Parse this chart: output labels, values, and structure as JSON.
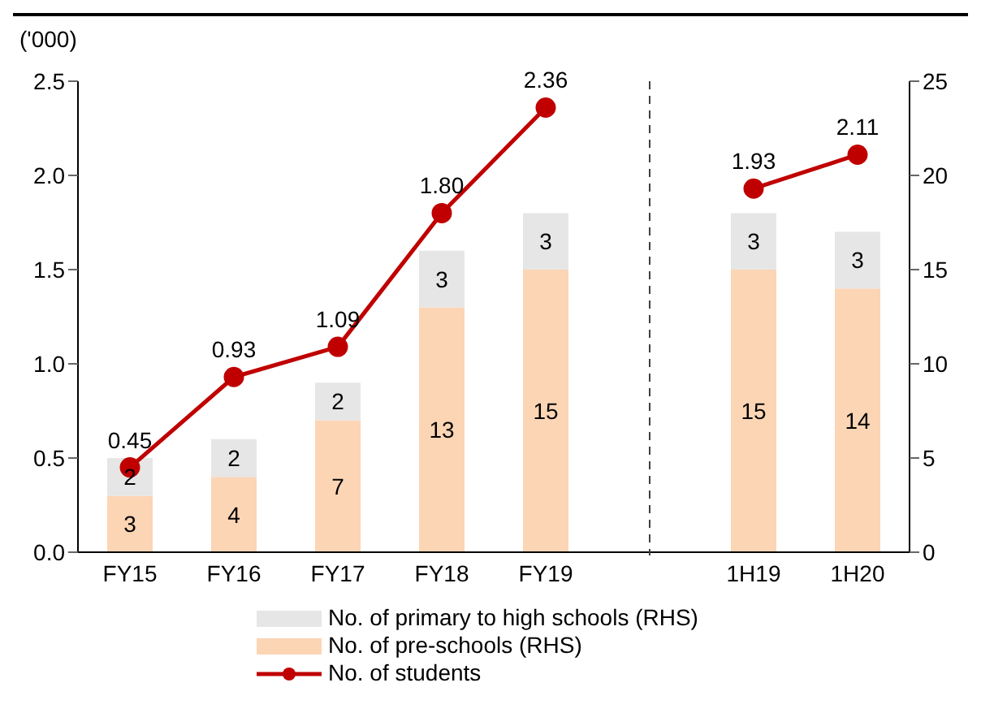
{
  "chart_data": {
    "type": "bar",
    "stacked": true,
    "ylabel": "('000)",
    "categories": [
      "FY15",
      "FY16",
      "FY17",
      "FY18",
      "FY19",
      null,
      "1H19",
      "1H20"
    ],
    "series": [
      {
        "name": "No. of pre-schools (RHS)",
        "axis": "y2",
        "color": "#fcd5b5",
        "values": [
          3,
          4,
          7,
          13,
          15,
          null,
          15,
          14
        ]
      },
      {
        "name": "No. of primary to high schools (RHS)",
        "axis": "y2",
        "color": "#e6e6e6",
        "values": [
          2,
          2,
          2,
          3,
          3,
          null,
          3,
          3
        ]
      },
      {
        "name": "No. of students",
        "type": "line",
        "axis": "y",
        "color": "#c00000",
        "marker": "circle",
        "values": [
          0.45,
          0.93,
          1.09,
          1.8,
          2.36,
          null,
          1.93,
          2.11
        ],
        "value_labels": [
          "0.45",
          "0.93",
          "1.09",
          "1.80",
          "2.36",
          null,
          "1.93",
          "2.11"
        ]
      }
    ],
    "ylim": [
      0,
      2.5
    ],
    "yticks": [
      {
        "value": 0,
        "label": "0.0"
      },
      {
        "value": 0.5,
        "label": "0.5"
      },
      {
        "value": 1,
        "label": "1.0"
      },
      {
        "value": 1.5,
        "label": "1.5"
      },
      {
        "value": 2,
        "label": "2.0"
      },
      {
        "value": 2.5,
        "label": "2.5"
      }
    ],
    "y2lim": [
      0,
      25
    ],
    "y2ticks": [
      0,
      5,
      10,
      15,
      20,
      25
    ],
    "data_labels": true,
    "legend": "bottom"
  }
}
